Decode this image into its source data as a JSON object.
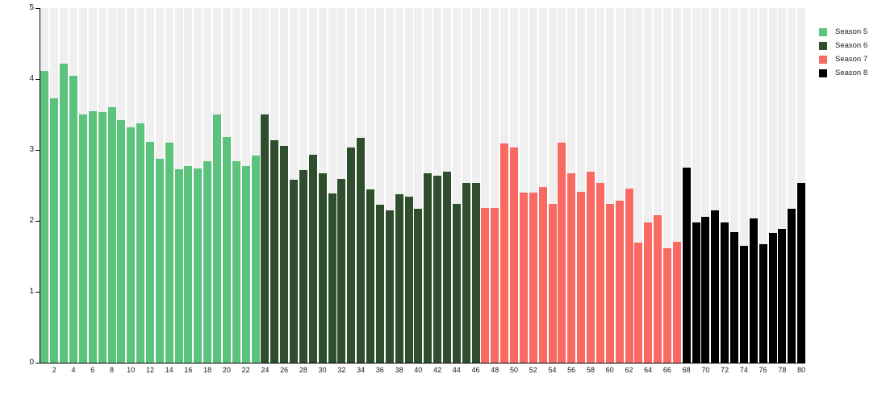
{
  "chart_data": {
    "type": "bar",
    "title": "",
    "xlabel": "",
    "ylabel": "",
    "ylim": [
      0,
      5
    ],
    "yticks": [
      0,
      1,
      2,
      3,
      4,
      5
    ],
    "ytick_labels": [
      "0",
      "1",
      "2",
      "3",
      "4",
      "5"
    ],
    "xtick_labels": [
      "2",
      "4",
      "6",
      "8",
      "10",
      "12",
      "14",
      "16",
      "18",
      "20",
      "22",
      "24",
      "26",
      "28",
      "30",
      "32",
      "34",
      "36",
      "38",
      "40",
      "42",
      "44",
      "46",
      "48",
      "50",
      "52",
      "54",
      "56",
      "58",
      "60",
      "62",
      "64",
      "66",
      "68",
      "70",
      "72",
      "74",
      "76",
      "78",
      "80"
    ],
    "x": [
      1,
      2,
      3,
      4,
      5,
      6,
      7,
      8,
      9,
      10,
      11,
      12,
      13,
      14,
      15,
      16,
      17,
      18,
      19,
      20,
      21,
      22,
      23,
      24,
      25,
      26,
      27,
      28,
      29,
      30,
      31,
      32,
      33,
      34,
      35,
      36,
      37,
      38,
      39,
      40,
      41,
      42,
      43,
      44,
      45,
      46,
      47,
      48,
      49,
      50,
      51,
      52,
      53,
      54,
      55,
      56,
      57,
      58,
      59,
      60,
      61,
      62,
      63,
      64,
      65,
      66,
      67,
      68,
      69,
      70,
      71,
      72,
      73,
      74,
      75,
      76,
      77,
      78,
      79,
      80
    ],
    "values": [
      4.11,
      3.73,
      4.22,
      4.05,
      3.5,
      3.55,
      3.54,
      3.6,
      3.42,
      3.32,
      3.37,
      3.11,
      2.88,
      3.1,
      2.73,
      2.77,
      2.74,
      2.84,
      3.5,
      3.18,
      2.84,
      2.77,
      2.92,
      3.5,
      3.14,
      3.06,
      2.58,
      2.72,
      2.93,
      2.67,
      2.39,
      2.59,
      3.03,
      3.17,
      2.44,
      2.23,
      2.15,
      2.38,
      2.34,
      2.17,
      2.67,
      2.64,
      2.69,
      2.24,
      2.53,
      2.53,
      2.18,
      2.18,
      3.09,
      3.03,
      2.4,
      2.4,
      2.48,
      2.24,
      3.1,
      2.67,
      2.41,
      2.69,
      2.54,
      2.24,
      2.29,
      2.46,
      1.69,
      1.98,
      2.08,
      1.61,
      1.71,
      2.75,
      1.98,
      2.06,
      2.15,
      1.98,
      1.84,
      1.65,
      2.04,
      1.67,
      1.83,
      1.89,
      2.17,
      2.53
    ],
    "seasons": [
      {
        "name": "Season 5",
        "color": "#5cc37c",
        "from": 1,
        "to": 23
      },
      {
        "name": "Season 6",
        "color": "#2e4e2e",
        "from": 24,
        "to": 46
      },
      {
        "name": "Season 7",
        "color": "#fa6962",
        "from": 47,
        "to": 67
      },
      {
        "name": "Season 8",
        "color": "#000000",
        "from": 68,
        "to": 80
      }
    ],
    "legend_position": "top-right",
    "grid": "vertical-bands",
    "background_band_color": "#efefef",
    "axis_color": "#000000"
  }
}
